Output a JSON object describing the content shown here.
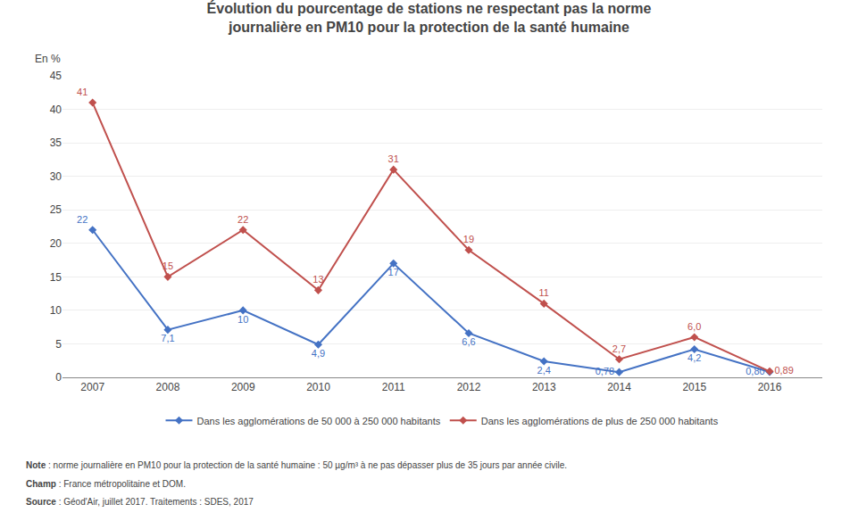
{
  "chart_data": {
    "type": "line",
    "title": "Évolution du pourcentage de stations ne respectant pas la norme journalière en PM10 pour la protection de la santé humaine",
    "ylabel": "En %",
    "x": [
      2007,
      2008,
      2009,
      2010,
      2011,
      2012,
      2013,
      2014,
      2015,
      2016
    ],
    "series": [
      {
        "name": "Dans les agglomérations de 50 000 à 250 000 habitants",
        "color": "#4472C4",
        "marker": "diamond",
        "values": [
          22,
          7.1,
          10,
          4.9,
          17,
          6.6,
          2.4,
          0.78,
          4.2,
          0.8
        ],
        "value_labels": [
          "22",
          "7,1",
          "10",
          "4,9",
          "17",
          "6,6",
          "2,4",
          "0,78",
          "4,2",
          "0,80"
        ]
      },
      {
        "name": "Dans les agglomérations de plus de 250 000 habitants",
        "color": "#C0504D",
        "marker": "diamond",
        "values": [
          41,
          15,
          22,
          13,
          31,
          19,
          11,
          2.7,
          6.0,
          0.89
        ],
        "value_labels": [
          "41",
          "15",
          "22",
          "13",
          "31",
          "19",
          "11",
          "2,7",
          "6,0",
          "0,89"
        ]
      }
    ],
    "xlim": [
      2006.6,
      2016.7
    ],
    "xticks": [
      2007,
      2008,
      2009,
      2010,
      2011,
      2012,
      2013,
      2014,
      2015,
      2016
    ],
    "ylim": [
      0,
      45
    ],
    "yticks": [
      0,
      5,
      10,
      15,
      20,
      25,
      30,
      35,
      40,
      45
    ],
    "grid": true,
    "legend": "bottom",
    "data_labels": true,
    "annotations": [
      "Note : norme journalière en PM10 pour la protection de la santé humaine : 50 µg/m³ à ne pas dépasser plus de 35 jours par année civile.",
      "Champ : France métropolitaine et DOM.",
      "Source : Géod'Air, juillet 2017. Traitements : SDES, 2017"
    ]
  }
}
